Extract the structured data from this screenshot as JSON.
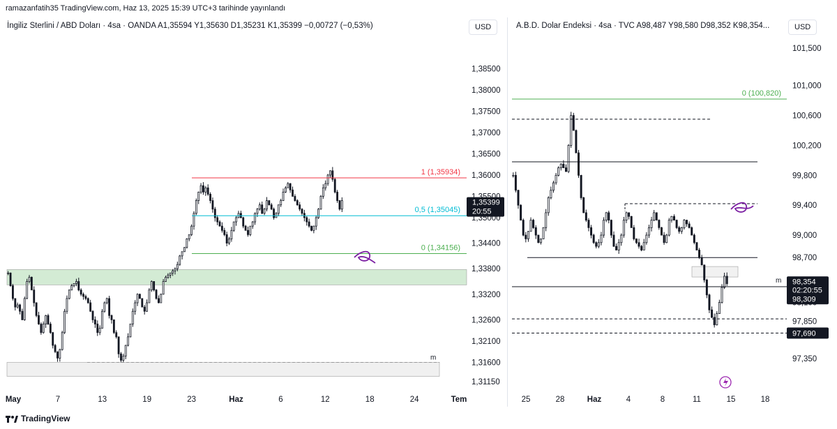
{
  "header": {
    "text": "ramazanfatih35 TradingView.com, Haz 13, 2025 15:39 UTC+3 tarihinde yayınlandı"
  },
  "footer": {
    "brand": "TradingView"
  },
  "left_pane": {
    "legend": "İngiliz Sterlini / ABD Doları · 4sa · OANDA  A1,35594  Y1,35630  D1,35231  K1,35399  −0,00727 (−0,53%)",
    "currency_button": "USD",
    "price_badge": {
      "price": "1,35399",
      "timer": "20:55"
    },
    "marker_label": "m"
  },
  "right_pane": {
    "legend": "A.B.D. Dolar Endeksi · 4sa · TVC  A98,487  Y98,580  D98,352  K98,354...",
    "currency_button": "USD",
    "price_badge": {
      "price": "98,354",
      "timer": "02:20:55",
      "line_price": "98,309"
    },
    "low_badge": "97,690",
    "marker_label": "m"
  },
  "colors": {
    "candle": "#131722",
    "fib_1": "#f23645",
    "fib_05": "#00bcd4",
    "fib_0": "#4caf50",
    "zone": "#c8e6c9",
    "annotation": "#7b1fa2",
    "badge_bg": "#131722"
  },
  "chart_data": [
    {
      "type": "candlestick",
      "title": "İngiliz Sterlini / ABD Doları · 4sa · OANDA",
      "ylim": [
        1.311,
        1.3885
      ],
      "y_ticks": [
        "1,38500",
        "1,38000",
        "1,37500",
        "1,37000",
        "1,36500",
        "1,36000",
        "1,35500",
        "1,35000",
        "1,34400",
        "1,33800",
        "1,33200",
        "1,32600",
        "1,32100",
        "1,31600",
        "1,31150"
      ],
      "x_ticks": [
        "May",
        "7",
        "13",
        "19",
        "23",
        "Haz",
        "6",
        "12",
        "18",
        "24",
        "Tem"
      ],
      "fib_levels": [
        {
          "ratio": "1",
          "value": 1.35934,
          "label": "1 (1,35934)"
        },
        {
          "ratio": "0.5",
          "value": 1.35045,
          "label": "0,5 (1,35045)"
        },
        {
          "ratio": "0",
          "value": 1.34156,
          "label": "0 (1,34156)"
        }
      ],
      "zone": {
        "top": 1.3378,
        "bottom": 1.3342
      },
      "support_dashed": 1.316,
      "close_series": [
        1.337,
        1.334,
        1.331,
        1.329,
        1.3295,
        1.328,
        1.326,
        1.331,
        1.335,
        1.336,
        1.333,
        1.33,
        1.327,
        1.325,
        1.323,
        1.325,
        1.327,
        1.325,
        1.323,
        1.32,
        1.3185,
        1.317,
        1.319,
        1.323,
        1.328,
        1.331,
        1.333,
        1.334,
        1.3345,
        1.335,
        1.333,
        1.332,
        1.3315,
        1.331,
        1.33,
        1.328,
        1.326,
        1.325,
        1.323,
        1.324,
        1.328,
        1.33,
        1.331,
        1.327,
        1.326,
        1.323,
        1.322,
        1.318,
        1.3165,
        1.3175,
        1.32,
        1.322,
        1.325,
        1.328,
        1.33,
        1.332,
        1.331,
        1.329,
        1.328,
        1.33,
        1.333,
        1.335,
        1.333,
        1.331,
        1.33,
        1.332,
        1.335,
        1.336,
        1.3365,
        1.337,
        1.3375,
        1.338,
        1.339,
        1.341,
        1.342,
        1.343,
        1.345,
        1.346,
        1.348,
        1.351,
        1.354,
        1.356,
        1.3575,
        1.356,
        1.357,
        1.3555,
        1.354,
        1.352,
        1.35,
        1.349,
        1.348,
        1.347,
        1.346,
        1.344,
        1.345,
        1.347,
        1.349,
        1.35,
        1.351,
        1.35,
        1.348,
        1.347,
        1.346,
        1.348,
        1.349,
        1.351,
        1.352,
        1.353,
        1.351,
        1.352,
        1.354,
        1.353,
        1.352,
        1.35,
        1.351,
        1.353,
        1.354,
        1.356,
        1.357,
        1.358,
        1.3565,
        1.355,
        1.354,
        1.353,
        1.352,
        1.351,
        1.35,
        1.349,
        1.348,
        1.347,
        1.348,
        1.35,
        1.352,
        1.355,
        1.357,
        1.358,
        1.36,
        1.361,
        1.359,
        1.356,
        1.354,
        1.352,
        1.354
      ]
    },
    {
      "type": "candlestick",
      "title": "A.B.D. Dolar Endeksi · 4sa · TVC",
      "ylim": [
        97.2,
        101.65
      ],
      "y_ticks": [
        "101,500",
        "101,000",
        "100,600",
        "100,200",
        "99,800",
        "99,400",
        "99,000",
        "98,700",
        "98,100",
        "97,850",
        "97,350"
      ],
      "x_ticks": [
        "25",
        "28",
        "Haz",
        "4",
        "8",
        "11",
        "15",
        "18"
      ],
      "fib_levels": [
        {
          "ratio": "0",
          "value": 100.82,
          "label": "0 (100,820)"
        }
      ],
      "levels": {
        "solid": [
          99.98,
          98.7,
          98.31
        ],
        "dashed": [
          100.55,
          99.42,
          97.88,
          97.69
        ]
      },
      "zone": {
        "top": 98.58,
        "bottom": 98.44
      },
      "close_series": [
        99.8,
        99.6,
        99.4,
        99.2,
        99.0,
        98.95,
        99.05,
        99.2,
        99.1,
        99.0,
        98.9,
        98.95,
        99.1,
        99.3,
        99.5,
        99.6,
        99.7,
        99.8,
        99.9,
        99.95,
        99.9,
        99.85,
        100.2,
        100.6,
        100.4,
        100.1,
        99.8,
        99.5,
        99.3,
        99.2,
        99.1,
        99.0,
        98.9,
        98.85,
        98.9,
        99.0,
        99.2,
        99.3,
        99.2,
        99.0,
        98.85,
        98.8,
        98.9,
        99.0,
        99.2,
        99.3,
        99.25,
        99.1,
        98.95,
        98.9,
        98.85,
        98.8,
        98.9,
        99.0,
        99.1,
        99.2,
        99.3,
        99.2,
        99.1,
        99.0,
        98.9,
        99.0,
        99.2,
        99.25,
        99.2,
        99.1,
        99.05,
        99.1,
        99.2,
        99.15,
        99.1,
        99.0,
        98.9,
        98.8,
        98.7,
        98.6,
        98.4,
        98.2,
        98.0,
        97.9,
        97.8,
        97.95,
        98.1,
        98.3,
        98.45,
        98.35
      ]
    }
  ]
}
